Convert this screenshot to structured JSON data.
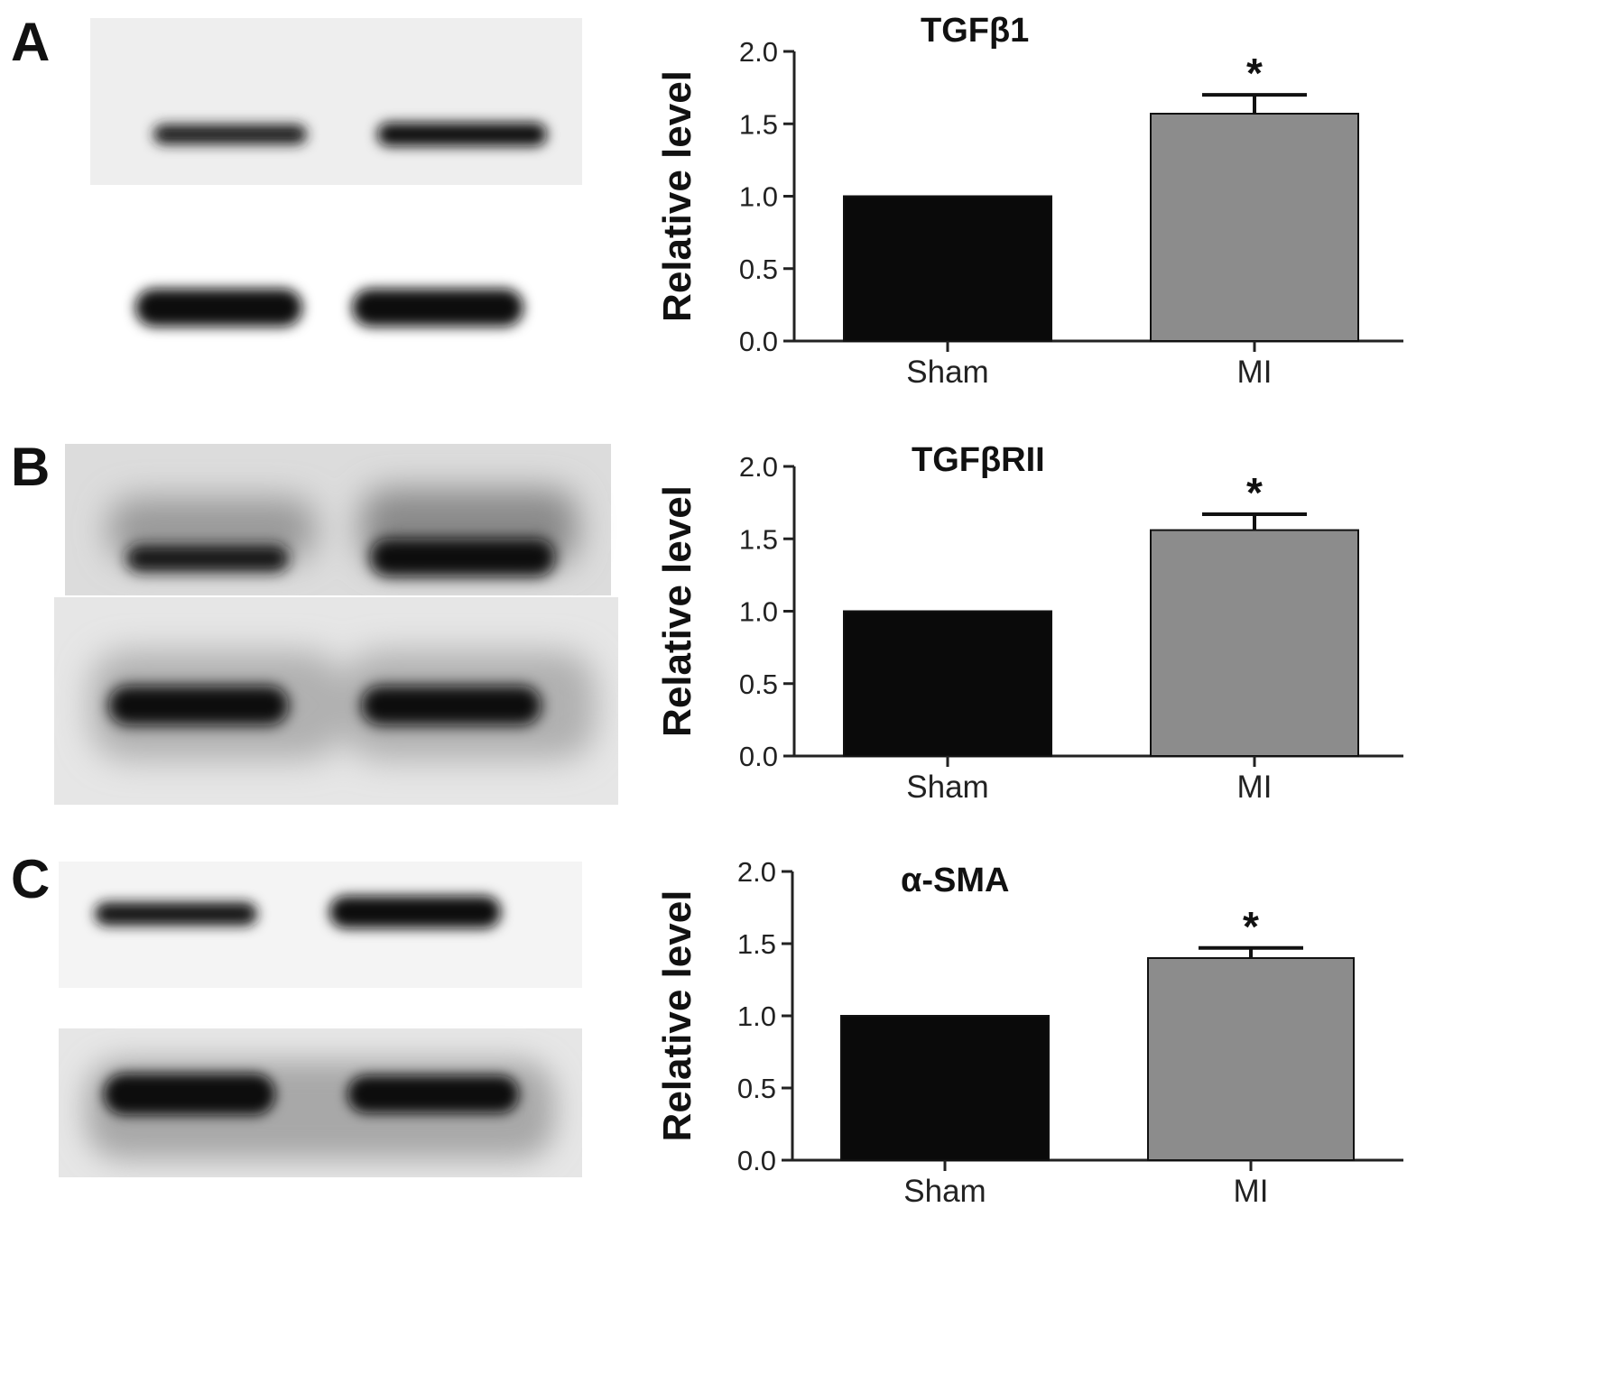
{
  "panels": [
    {
      "letter": "A"
    },
    {
      "letter": "B"
    },
    {
      "letter": "C"
    }
  ],
  "colors": {
    "sham": "#0a0a0a",
    "mi": "#8c8c8c",
    "axis": "#222222",
    "blot_bg": "#efefef",
    "band": "#141414"
  },
  "chart_data": [
    {
      "type": "bar",
      "title": "TGFβ1",
      "ylabel": "Relative level",
      "categories": [
        "Sham",
        "MI"
      ],
      "values": [
        1.0,
        1.57
      ],
      "errors": [
        0,
        0.13
      ],
      "significance": [
        "",
        "*"
      ],
      "ylim": [
        0,
        2.0
      ],
      "yticks": [
        "0.0",
        "0.5",
        "1.0",
        "1.5",
        "2.0"
      ]
    },
    {
      "type": "bar",
      "title": "TGFβRII",
      "ylabel": "Relative level",
      "categories": [
        "Sham",
        "MI"
      ],
      "values": [
        1.0,
        1.56
      ],
      "errors": [
        0,
        0.11
      ],
      "significance": [
        "",
        "*"
      ],
      "ylim": [
        0,
        2.0
      ],
      "yticks": [
        "0.0",
        "0.5",
        "1.0",
        "1.5",
        "2.0"
      ]
    },
    {
      "type": "bar",
      "title": "α-SMA",
      "ylabel": "Relative level",
      "categories": [
        "Sham",
        "MI"
      ],
      "values": [
        1.0,
        1.4
      ],
      "errors": [
        0,
        0.07
      ],
      "significance": [
        "",
        "*"
      ],
      "ylim": [
        0,
        2.0
      ],
      "yticks": [
        "0.0",
        "0.5",
        "1.0",
        "1.5",
        "2.0"
      ]
    }
  ]
}
